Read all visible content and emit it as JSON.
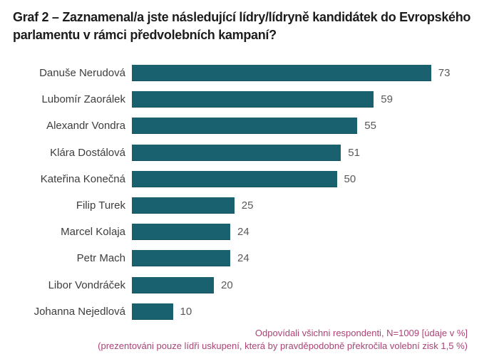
{
  "title": "Graf 2 – Zaznamenal/a jste následující lídry/lídryně kandidátek do Evropského parlamentu v rámci předvolebních kampaní?",
  "chart_data": {
    "type": "bar",
    "orientation": "horizontal",
    "title": "Graf 2 – Zaznamenal/a jste následující lídry/lídryně kandidátek do Evropského parlamentu v rámci předvolebních kampaní?",
    "categories": [
      "Danuše Nerudová",
      "Lubomír Zaorálek",
      "Alexandr Vondra",
      "Klára Dostálová",
      "Kateřina Konečná",
      "Filip Turek",
      "Marcel Kolaja",
      "Petr Mach",
      "Libor Vondráček",
      "Johanna Nejedlová"
    ],
    "values": [
      73,
      59,
      55,
      51,
      50,
      25,
      24,
      24,
      20,
      10
    ],
    "unit": "%",
    "xlim": [
      0,
      100
    ],
    "grid": false,
    "legend": false,
    "data_labels": true,
    "bar_color": "#1a6170",
    "value_label_color": "#595959",
    "category_label_color": "#3d3d3d"
  },
  "footnote": {
    "line1": "Odpovídali všichni respondenti, N=1009 [údaje v %]",
    "line2": "(prezentováni pouze lídři uskupení, která by pravděpodobně překročila volební zisk 1,5 %)",
    "color": "#ac4376"
  }
}
